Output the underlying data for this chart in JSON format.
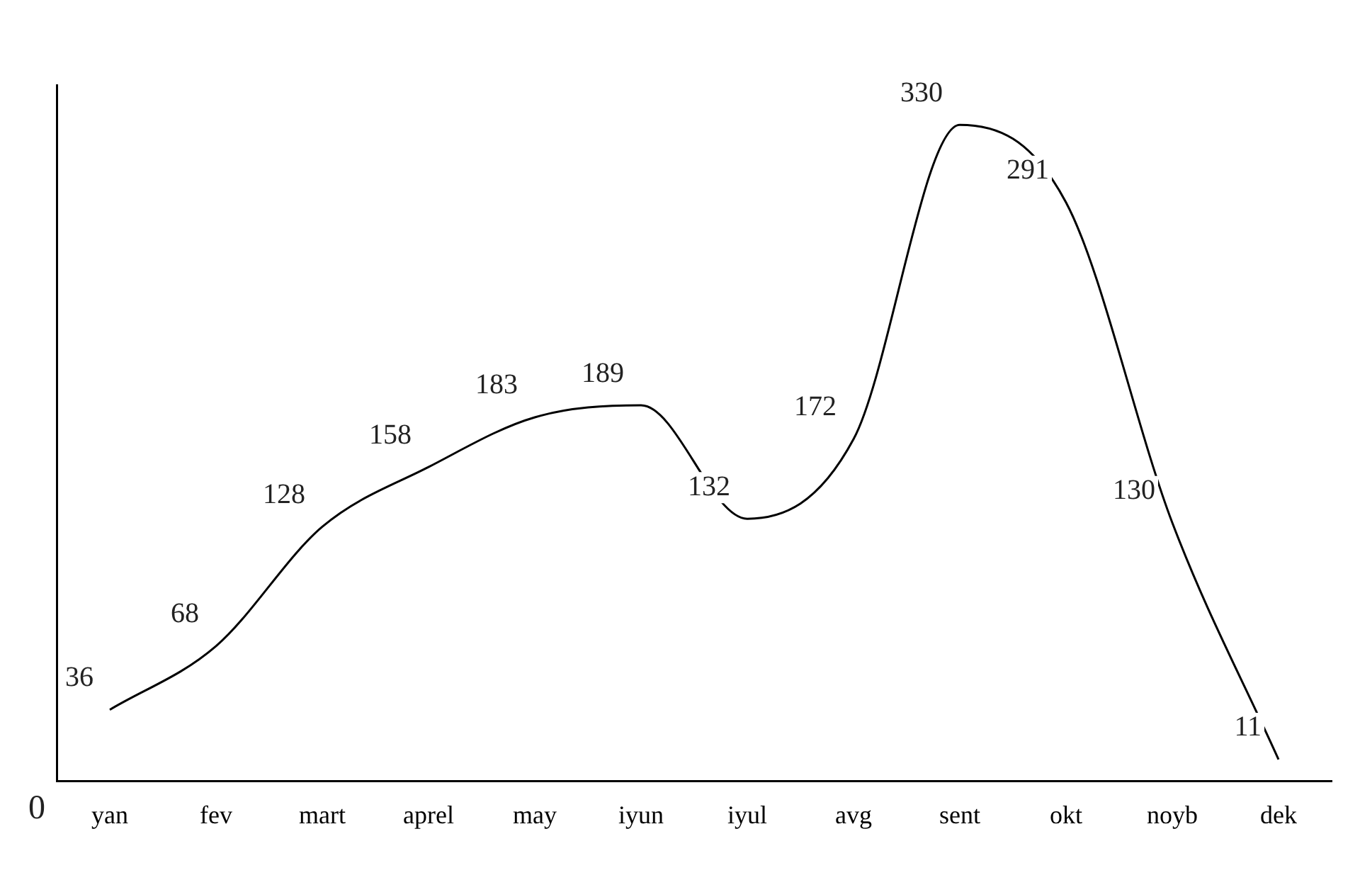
{
  "chart_data": {
    "type": "line",
    "categories": [
      "yan",
      "fev",
      "mart",
      "aprel",
      "may",
      "iyun",
      "iyul",
      "avg",
      "sent",
      "okt",
      "noyb",
      "dek"
    ],
    "values": [
      36,
      68,
      128,
      158,
      183,
      189,
      132,
      172,
      330,
      291,
      130,
      11
    ],
    "data_labels": true,
    "ylim": [
      0,
      350
    ],
    "annotations": [
      "0"
    ],
    "color": "#000000",
    "grid": false,
    "legend": false,
    "marker": "none",
    "line_style": "solid"
  }
}
